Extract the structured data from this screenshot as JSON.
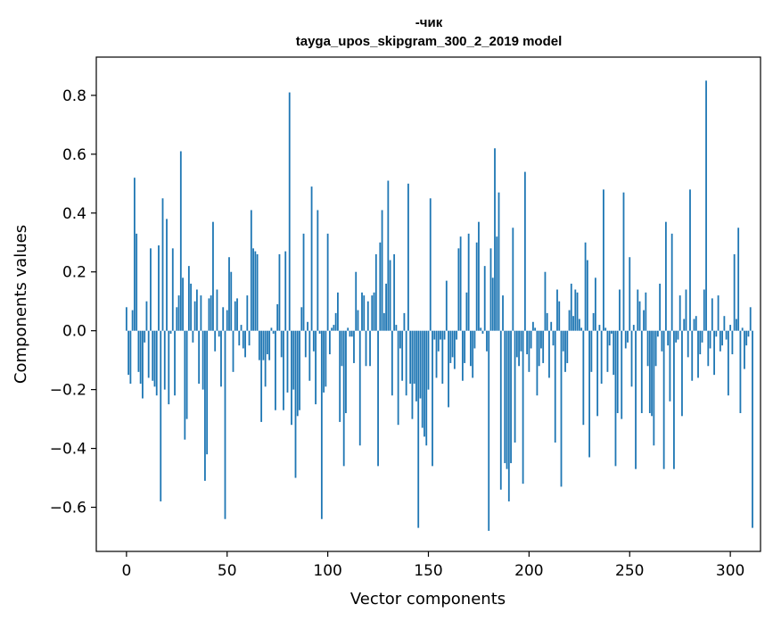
{
  "chart_data": {
    "type": "bar",
    "title": "-чик",
    "subtitle": "tayga_upos_skipgram_300_2_2019 model",
    "xlabel": "Vector components",
    "ylabel": "Components values",
    "xlim": [
      -15,
      315
    ],
    "ylim": [
      -0.75,
      0.93
    ],
    "x_ticks": [
      0,
      50,
      100,
      150,
      200,
      250,
      300
    ],
    "y_ticks": [
      -0.6,
      -0.4,
      -0.2,
      0.0,
      0.2,
      0.4,
      0.6,
      0.8
    ],
    "y_tick_labels": [
      "−0.6",
      "−0.4",
      "−0.2",
      "0.0",
      "0.2",
      "0.4",
      "0.6",
      "0.8"
    ],
    "x_tick_labels": [
      "0",
      "50",
      "100",
      "150",
      "200",
      "250",
      "300"
    ],
    "bar_color": "#1f77b4",
    "values": [
      0.08,
      -0.15,
      -0.18,
      0.07,
      0.52,
      0.33,
      -0.14,
      -0.18,
      -0.23,
      -0.04,
      0.1,
      -0.16,
      0.28,
      -0.17,
      -0.19,
      -0.22,
      0.29,
      -0.58,
      0.45,
      -0.2,
      0.38,
      -0.25,
      -0.01,
      0.28,
      -0.22,
      0.08,
      0.12,
      0.61,
      0.18,
      -0.37,
      -0.3,
      0.22,
      0.16,
      -0.04,
      0.1,
      0.14,
      -0.18,
      0.12,
      -0.2,
      -0.51,
      -0.42,
      0.11,
      0.12,
      0.37,
      -0.07,
      0.14,
      -0.02,
      -0.19,
      0.08,
      -0.64,
      0.07,
      0.25,
      0.2,
      -0.14,
      0.1,
      0.11,
      -0.05,
      0.02,
      -0.06,
      -0.09,
      0.12,
      -0.05,
      0.41,
      0.28,
      0.27,
      0.26,
      -0.1,
      -0.31,
      -0.1,
      -0.19,
      -0.08,
      -0.1,
      0.01,
      -0.01,
      -0.27,
      0.09,
      0.26,
      -0.09,
      -0.27,
      0.27,
      -0.21,
      0.81,
      -0.32,
      -0.2,
      -0.5,
      -0.29,
      -0.27,
      0.08,
      0.33,
      -0.09,
      0.03,
      -0.17,
      0.49,
      -0.07,
      -0.25,
      0.41,
      -0.01,
      -0.64,
      -0.21,
      -0.19,
      0.33,
      -0.08,
      0.01,
      0.02,
      0.06,
      0.13,
      -0.31,
      -0.12,
      -0.46,
      -0.28,
      0.01,
      -0.02,
      -0.02,
      -0.11,
      0.2,
      0.07,
      -0.39,
      0.13,
      0.12,
      -0.12,
      0.1,
      -0.12,
      0.12,
      0.13,
      0.26,
      -0.46,
      0.3,
      0.41,
      0.06,
      0.16,
      0.51,
      0.24,
      -0.22,
      0.26,
      0.02,
      -0.32,
      -0.06,
      -0.17,
      0.06,
      -0.22,
      0.5,
      -0.18,
      -0.3,
      -0.18,
      -0.24,
      -0.67,
      -0.23,
      -0.33,
      -0.36,
      -0.39,
      -0.2,
      0.45,
      -0.46,
      -0.03,
      -0.16,
      -0.07,
      -0.03,
      -0.18,
      -0.03,
      0.17,
      -0.26,
      -0.11,
      -0.09,
      -0.13,
      -0.03,
      0.28,
      0.32,
      -0.17,
      -0.11,
      0.13,
      0.33,
      -0.12,
      -0.16,
      -0.06,
      0.3,
      0.37,
      0.01,
      -0.01,
      0.22,
      -0.07,
      -0.68,
      0.28,
      0.18,
      0.62,
      0.32,
      0.47,
      -0.54,
      0.12,
      -0.45,
      -0.47,
      -0.58,
      -0.45,
      0.35,
      -0.38,
      -0.09,
      -0.12,
      -0.07,
      -0.52,
      0.54,
      -0.08,
      -0.14,
      -0.06,
      0.03,
      0.01,
      -0.22,
      -0.12,
      -0.06,
      -0.11,
      0.2,
      0.06,
      -0.16,
      0.03,
      -0.05,
      -0.38,
      0.14,
      0.1,
      -0.53,
      -0.07,
      -0.14,
      -0.11,
      0.07,
      0.16,
      0.05,
      0.14,
      0.13,
      0.04,
      0.01,
      -0.32,
      0.3,
      0.24,
      -0.43,
      -0.14,
      0.06,
      0.18,
      -0.29,
      0.02,
      -0.18,
      0.48,
      0.01,
      -0.14,
      -0.05,
      -0.01,
      -0.15,
      -0.46,
      -0.28,
      0.14,
      -0.3,
      0.47,
      -0.06,
      -0.04,
      0.25,
      -0.19,
      0.02,
      -0.47,
      0.14,
      0.1,
      -0.28,
      0.07,
      0.13,
      -0.12,
      -0.28,
      -0.29,
      -0.39,
      -0.12,
      -0.02,
      0.16,
      -0.07,
      -0.47,
      0.37,
      -0.05,
      -0.24,
      0.33,
      -0.47,
      -0.04,
      -0.03,
      0.12,
      -0.29,
      0.04,
      0.14,
      -0.09,
      0.48,
      -0.17,
      0.04,
      0.05,
      -0.16,
      -0.08,
      -0.04,
      0.14,
      0.85,
      -0.12,
      -0.06,
      0.11,
      -0.15,
      -0.02,
      0.12,
      -0.07,
      -0.05,
      0.05,
      -0.03,
      -0.22,
      0.02,
      -0.08,
      0.26,
      0.04,
      0.35,
      -0.28,
      0.01,
      -0.13,
      -0.05,
      -0.02,
      0.08,
      -0.67
    ]
  }
}
